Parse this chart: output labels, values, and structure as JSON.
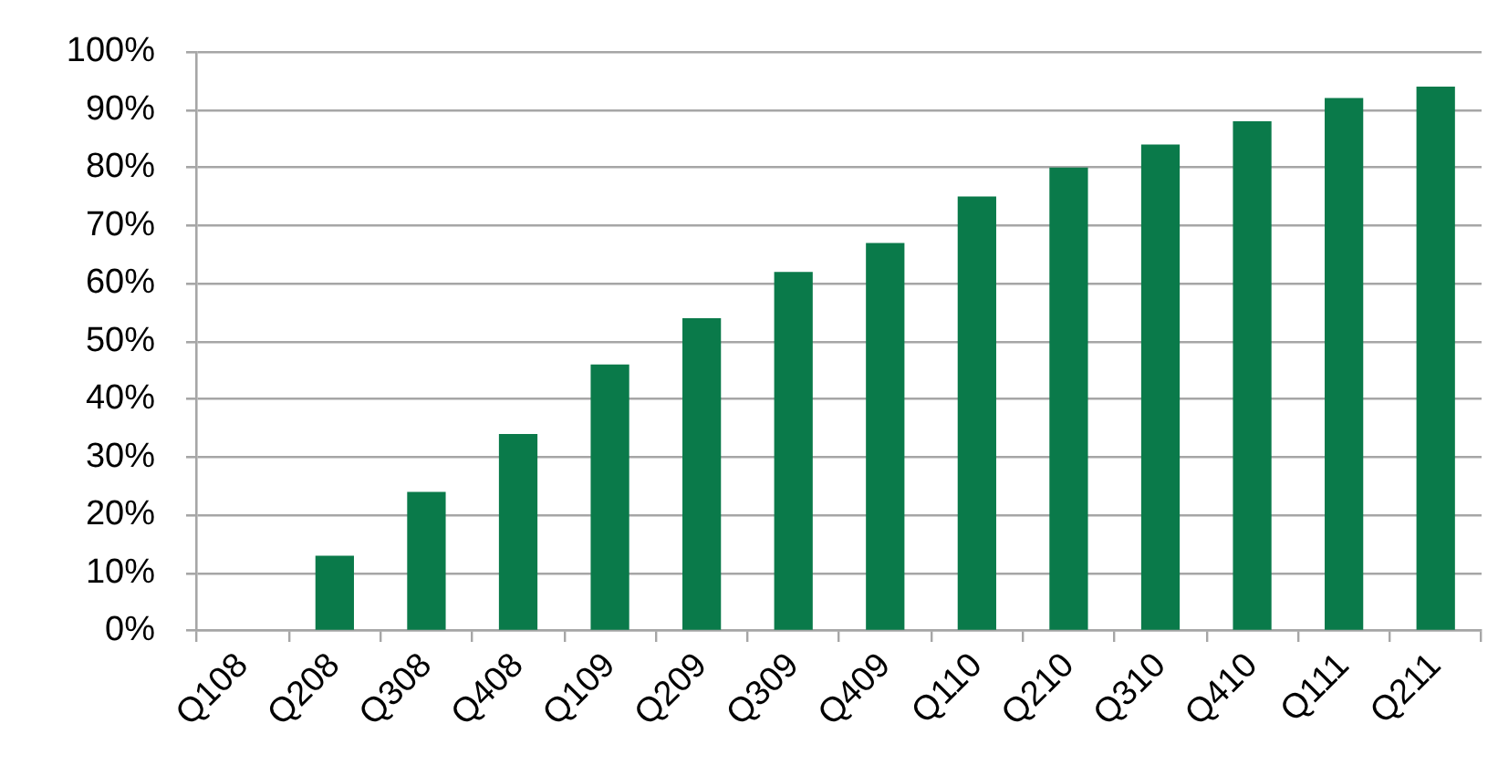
{
  "chart_data": {
    "type": "bar",
    "categories": [
      "Q108",
      "Q208",
      "Q308",
      "Q408",
      "Q109",
      "Q209",
      "Q309",
      "Q409",
      "Q110",
      "Q210",
      "Q310",
      "Q410",
      "Q111",
      "Q211"
    ],
    "values": [
      null,
      13,
      24,
      34,
      46,
      54,
      62,
      67,
      75,
      80,
      84,
      88,
      92,
      94
    ],
    "color": "#0a7a4a",
    "ylim": [
      0,
      100
    ],
    "yticks": [
      {
        "value": 0,
        "label": "0%"
      },
      {
        "value": 10,
        "label": "10%"
      },
      {
        "value": 20,
        "label": "20%"
      },
      {
        "value": 30,
        "label": "30%"
      },
      {
        "value": 40,
        "label": "40%"
      },
      {
        "value": 50,
        "label": "50%"
      },
      {
        "value": 60,
        "label": "60%"
      },
      {
        "value": 70,
        "label": "70%"
      },
      {
        "value": 80,
        "label": "80%"
      },
      {
        "value": 90,
        "label": "90%"
      },
      {
        "value": 100,
        "label": "100%"
      }
    ],
    "grid": "y",
    "legend": false
  }
}
